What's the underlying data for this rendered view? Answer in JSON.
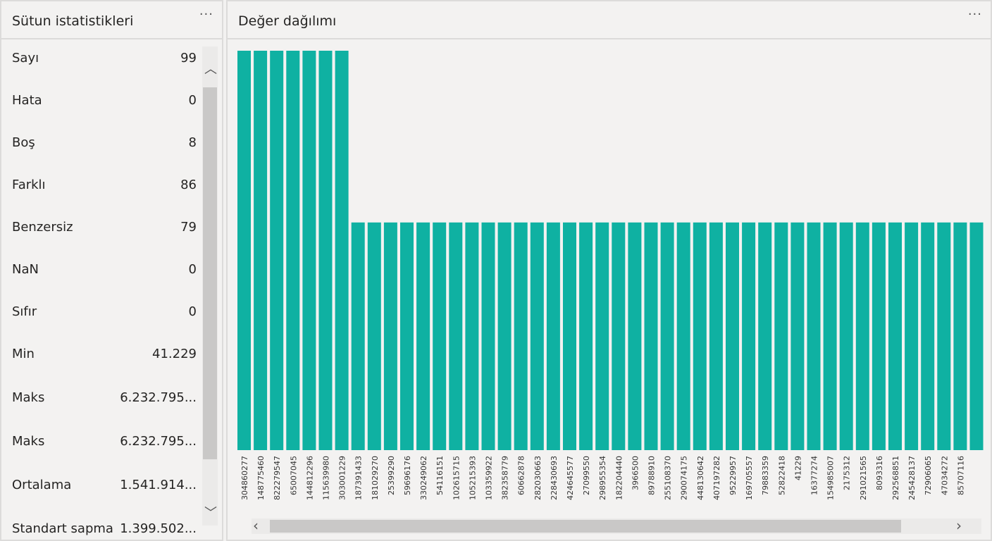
{
  "left_panel": {
    "title": "Sütun istatistikleri",
    "more_label": "···",
    "stats": [
      {
        "label": "Sayı",
        "value": "99"
      },
      {
        "label": "Hata",
        "value": "0"
      },
      {
        "label": "Boş",
        "value": "8"
      },
      {
        "label": "Farklı",
        "value": "86"
      },
      {
        "label": "Benzersiz",
        "value": "79"
      },
      {
        "label": "NaN",
        "value": "0"
      },
      {
        "label": "Sıfır",
        "value": "0"
      },
      {
        "label": "Min",
        "value": "41.229"
      },
      {
        "label": "Maks",
        "value": "6.232.795..."
      },
      {
        "label": "Maks",
        "value": "6.232.795..."
      },
      {
        "label": "Ortalama",
        "value": "1.541.914..."
      },
      {
        "label": "Standart sapma",
        "value": "1.399.502..."
      }
    ]
  },
  "right_panel": {
    "title": "Değer dağılımı",
    "more_label": "···"
  },
  "chart_data": {
    "type": "bar",
    "bar_color": "#0fb1a2",
    "categories": [
      "304860277",
      "148775460",
      "822279547",
      "65007045",
      "144812296",
      "115639980",
      "303001229",
      "187391433",
      "181029270",
      "25399290",
      "59696176",
      "330249062",
      "54116151",
      "102615715",
      "105215393",
      "103359922",
      "382358779",
      "60662878",
      "282030663",
      "228430693",
      "424645577",
      "27099550",
      "298955354",
      "182204440",
      "3966500",
      "89788910",
      "255108370",
      "290074175",
      "448130642",
      "407197282",
      "95229957",
      "169705557",
      "79883359",
      "52822418",
      "41229",
      "16377274",
      "154985007",
      "2175312",
      "291021565",
      "8093316",
      "292568851",
      "245428137",
      "72906065",
      "47034272",
      "85707116",
      ""
    ],
    "values": [
      2,
      2,
      2,
      2,
      2,
      2,
      2,
      1,
      1,
      1,
      1,
      1,
      1,
      1,
      1,
      1,
      1,
      1,
      1,
      1,
      1,
      1,
      1,
      1,
      1,
      1,
      1,
      1,
      1,
      1,
      1,
      1,
      1,
      1,
      1,
      1,
      1,
      1,
      1,
      1,
      1,
      1,
      1,
      1,
      1,
      1
    ]
  }
}
